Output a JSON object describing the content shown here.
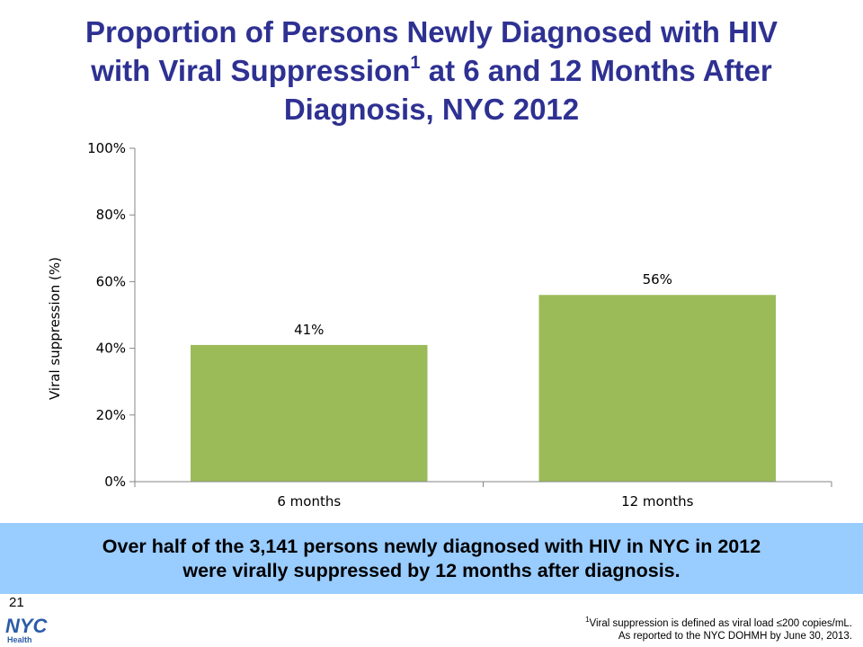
{
  "title": {
    "line1": "Proportion of Persons Newly Diagnosed with HIV",
    "line2_pre": "with Viral Suppression",
    "footnote_ref": "1",
    "line2_post": " at 6 and 12 Months After",
    "line3": "Diagnosis, NYC 2012"
  },
  "chart_data": {
    "type": "bar",
    "categories": [
      "6 months",
      "12 months"
    ],
    "values": [
      41,
      56
    ],
    "data_labels": [
      "41%",
      "56%"
    ],
    "ylabel": "Viral suppression (%)",
    "ylim": [
      0,
      100
    ],
    "yticks": [
      0,
      20,
      40,
      60,
      80,
      100
    ],
    "ytick_labels": [
      "0%",
      "20%",
      "40%",
      "60%",
      "80%",
      "100%"
    ],
    "grid": false,
    "bar_color": "#9bbb59"
  },
  "callout": {
    "line1": "Over half of the 3,141 persons newly diagnosed with HIV in NYC in 2012",
    "line2": "were virally suppressed by 12 months after diagnosis."
  },
  "slide_number": "21",
  "footnote": {
    "marker": "1",
    "line1": "Viral suppression is defined as viral load ≤200 copies/mL.",
    "line2": "As reported to the NYC DOHMH by June 30, 2013."
  },
  "logo": {
    "text": "NYC",
    "subtext": "Health"
  },
  "colors": {
    "title": "#2e3192",
    "callout_bg": "#99ccff",
    "logo": "#2b5ca8"
  }
}
